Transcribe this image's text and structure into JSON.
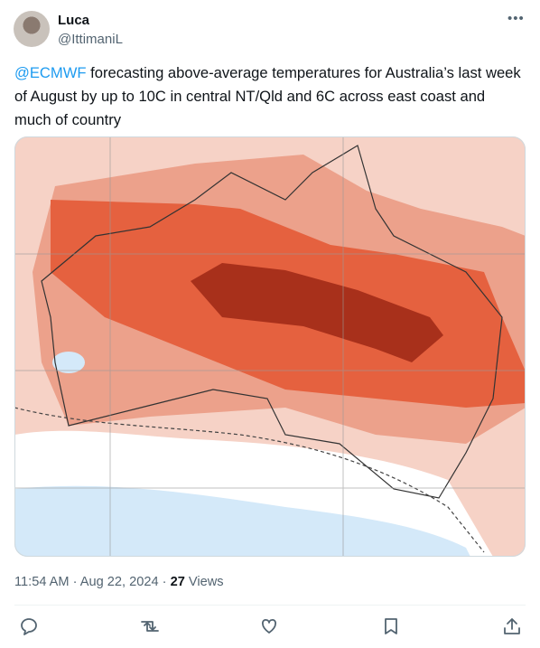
{
  "author": {
    "name": "Luca",
    "handle": "@IttimaniL"
  },
  "tweet": {
    "mention": "@ECMWF",
    "text": " forecasting above-average temperatures for Australia’s last week of August by up to 10C in central NT/Qld and 6C across east coast and much of country"
  },
  "meta": {
    "time": "11:54 AM",
    "separator": "·",
    "date": "Aug 22, 2024",
    "views": 27,
    "views_label": "Views"
  }
}
